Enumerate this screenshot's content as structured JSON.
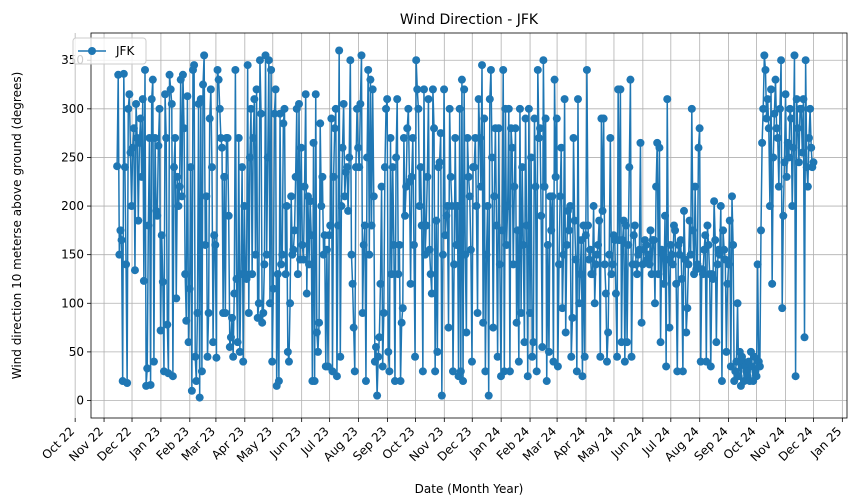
{
  "chart_data": {
    "type": "line",
    "title": "Wind Direction - JFK",
    "xlabel": "Date (Month Year)",
    "ylabel": "Wind direction 10 meterse above ground (degrees)",
    "x_ticks": [
      "Oct 22",
      "Nov 22",
      "Dec 22",
      "Jan 23",
      "Feb 23",
      "Mar 23",
      "Apr 23",
      "May 23",
      "Jun 23",
      "Jul 23",
      "Aug 23",
      "Sep 23",
      "Oct 23",
      "Nov 23",
      "Dec 23",
      "Jan 24",
      "Feb 24",
      "Mar 24",
      "Apr 24",
      "May 24",
      "Jun 24",
      "Jul 24",
      "Aug 24",
      "Sep 24",
      "Oct 24",
      "Nov 24",
      "Dec 24",
      "Jan 25"
    ],
    "xlim": [
      "2022-10-18",
      "2025-01-06"
    ],
    "ylim": [
      -18,
      378
    ],
    "y_ticks": [
      0,
      50,
      100,
      150,
      200,
      250,
      300,
      350
    ],
    "grid": true,
    "legend_position": "top-left",
    "marker": "circle",
    "color": "#1f77b4",
    "series": [
      {
        "name": "JFK",
        "x_start": "2022-11-15",
        "x_end": "2024-12-01",
        "values": [
          241,
          335,
          150,
          175,
          165,
          20,
          336,
          240,
          140,
          18,
          300,
          315,
          255,
          200,
          260,
          280,
          134,
          305,
          270,
          185,
          265,
          290,
          230,
          310,
          123,
          340,
          15,
          33,
          180,
          270,
          16,
          310,
          330,
          40,
          270,
          195,
          190,
          262,
          300,
          72,
          170,
          122,
          30,
          315,
          270,
          78,
          28,
          335,
          320,
          305,
          25,
          240,
          270,
          105,
          230,
          200,
          220,
          330,
          210,
          335,
          280,
          130,
          82,
          313,
          60,
          115,
          240,
          10,
          340,
          345,
          45,
          20,
          90,
          305,
          3,
          310,
          30,
          325,
          355,
          160,
          210,
          45,
          90,
          290,
          320,
          240,
          60,
          170,
          160,
          44,
          340,
          330,
          300,
          270,
          260,
          90,
          230,
          90,
          270,
          270,
          190,
          55,
          65,
          85,
          45,
          110,
          340,
          125,
          60,
          270,
          50,
          130,
          240,
          40,
          200,
          130,
          125,
          345,
          90,
          250,
          300,
          130,
          270,
          310,
          150,
          320,
          85,
          100,
          350,
          295,
          80,
          90,
          140,
          355,
          150,
          250,
          350,
          100,
          340,
          40,
          115,
          295,
          320,
          15,
          130,
          20,
          295,
          140,
          150,
          285,
          300,
          130,
          200,
          50,
          40,
          100,
          210,
          150,
          155,
          175,
          230,
          300,
          130,
          305,
          145,
          260,
          160,
          145,
          220,
          315,
          110,
          210,
          140,
          205,
          170,
          20,
          265,
          20,
          315,
          70,
          50,
          80,
          285,
          200,
          230,
          150,
          170,
          35,
          155,
          35,
          170,
          180,
          290,
          30,
          230,
          280,
          300,
          25,
          180,
          360,
          45,
          200,
          260,
          305,
          210,
          235,
          240,
          195,
          250,
          350,
          150,
          120,
          75,
          30,
          240,
          300,
          260,
          240,
          305,
          355,
          90,
          160,
          180,
          20,
          250,
          340,
          150,
          330,
          180,
          320,
          210,
          40,
          55,
          5,
          45,
          65,
          120,
          220,
          35,
          90,
          240,
          300,
          310,
          50,
          30,
          270,
          130,
          240,
          160,
          20,
          250,
          310,
          130,
          160,
          20,
          80,
          95,
          270,
          190,
          220,
          280,
          300,
          225,
          120,
          230,
          270,
          160,
          45,
          350,
          320,
          300,
          200,
          240,
          180,
          30,
          320,
          150,
          180,
          230,
          310,
          155,
          130,
          110,
          320,
          280,
          30,
          185,
          50,
          240,
          245,
          275,
          5,
          150,
          320,
          170,
          190,
          200,
          75,
          300,
          230,
          200,
          30,
          140,
          270,
          160,
          200,
          25,
          300,
          30,
          330,
          20,
          320,
          150,
          70,
          270,
          230,
          210,
          155,
          40,
          240,
          240,
          270,
          200,
          90,
          310,
          270,
          220,
          345,
          80,
          290,
          30,
          150,
          200,
          5,
          310,
          340,
          250,
          75,
          210,
          280,
          180,
          45,
          280,
          140,
          25,
          175,
          340,
          30,
          300,
          160,
          200,
          300,
          30,
          280,
          260,
          140,
          220,
          280,
          80,
          175,
          40,
          300,
          90,
          240,
          160,
          60,
          290,
          180,
          25,
          300,
          90,
          250,
          45,
          60,
          290,
          220,
          30,
          340,
          270,
          280,
          190,
          55,
          350,
          220,
          290,
          20,
          160,
          50,
          210,
          175,
          210,
          40,
          330,
          230,
          290,
          35,
          140,
          210,
          260,
          95,
          150,
          310,
          70,
          160,
          195,
          175,
          200,
          45,
          85,
          270,
          185,
          145,
          30,
          310,
          100,
          130,
          165,
          25,
          180,
          45,
          170,
          340,
          180,
          145,
          155,
          130,
          130,
          200,
          100,
          140,
          150,
          160,
          185,
          45,
          290,
          195,
          290,
          140,
          110,
          40,
          70,
          150,
          270,
          130,
          140,
          170,
          165,
          110,
          45,
          320,
          165,
          320,
          60,
          165,
          185,
          40,
          180,
          60,
          160,
          240,
          330,
          45,
          140,
          170,
          180,
          140,
          130,
          150,
          155,
          265,
          80,
          140,
          155,
          165,
          160,
          145,
          150,
          140,
          175,
          130,
          165,
          165,
          100,
          220,
          265,
          130,
          260,
          60,
          155,
          150,
          120,
          190,
          35,
          310,
          145,
          75,
          160,
          150,
          140,
          180,
          175,
          120,
          30,
          160,
          150,
          165,
          125,
          30,
          195,
          145,
          70,
          95,
          140,
          185,
          150,
          300,
          175,
          130,
          220,
          135,
          140,
          260,
          280,
          40,
          135,
          130,
          155,
          170,
          40,
          180,
          160,
          130,
          35,
          130,
          125,
          205,
          165,
          60,
          140,
          155,
          150,
          200,
          20,
          175,
          155,
          145,
          50,
          120,
          140,
          185,
          35,
          210,
          160,
          20,
          30,
          40,
          100,
          25,
          50,
          15,
          45,
          40,
          20,
          35,
          30,
          25,
          40,
          20,
          50,
          35,
          20,
          45,
          30,
          25,
          140,
          40,
          35,
          175,
          265,
          300,
          355,
          340,
          290,
          310,
          280,
          200,
          320,
          120,
          250,
          295,
          330,
          280,
          270,
          220,
          300,
          350,
          95,
          190,
          245,
          315,
          230,
          265,
          250,
          300,
          290,
          200,
          260,
          355,
          25,
          310,
          280,
          245,
          300,
          300,
          255,
          310,
          65,
          350,
          240,
          220,
          270,
          300,
          260,
          240,
          245
        ]
      }
    ]
  }
}
